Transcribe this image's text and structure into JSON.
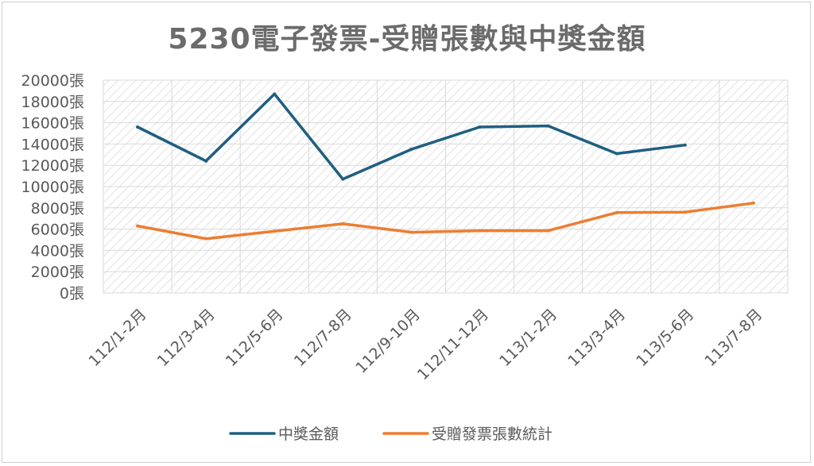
{
  "chart_data": {
    "type": "line",
    "title": "5230電子發票-受贈張數與中獎金額",
    "categories": [
      "112/1-2月",
      "112/3-4月",
      "112/5-6月",
      "112/7-8月",
      "112/9-10月",
      "112/11-12月",
      "113/1-2月",
      "113/3-4月",
      "113/5-6月",
      "113/7-8月"
    ],
    "ylim": [
      0,
      20000
    ],
    "y_ticks": [
      0,
      2000,
      4000,
      6000,
      8000,
      10000,
      12000,
      14000,
      16000,
      18000,
      20000
    ],
    "y_unit": "張",
    "grid": true,
    "legend_position": "bottom",
    "series": [
      {
        "name": "中獎金額",
        "color": "#1f5f80",
        "values": [
          15600,
          12400,
          18700,
          10700,
          13500,
          15600,
          15700,
          13100,
          13900,
          null
        ]
      },
      {
        "name": "受贈發票張數統計",
        "color": "#ed7d31",
        "values": [
          6300,
          5100,
          5800,
          6500,
          5700,
          5850,
          5850,
          7550,
          7600,
          8450
        ]
      }
    ]
  }
}
